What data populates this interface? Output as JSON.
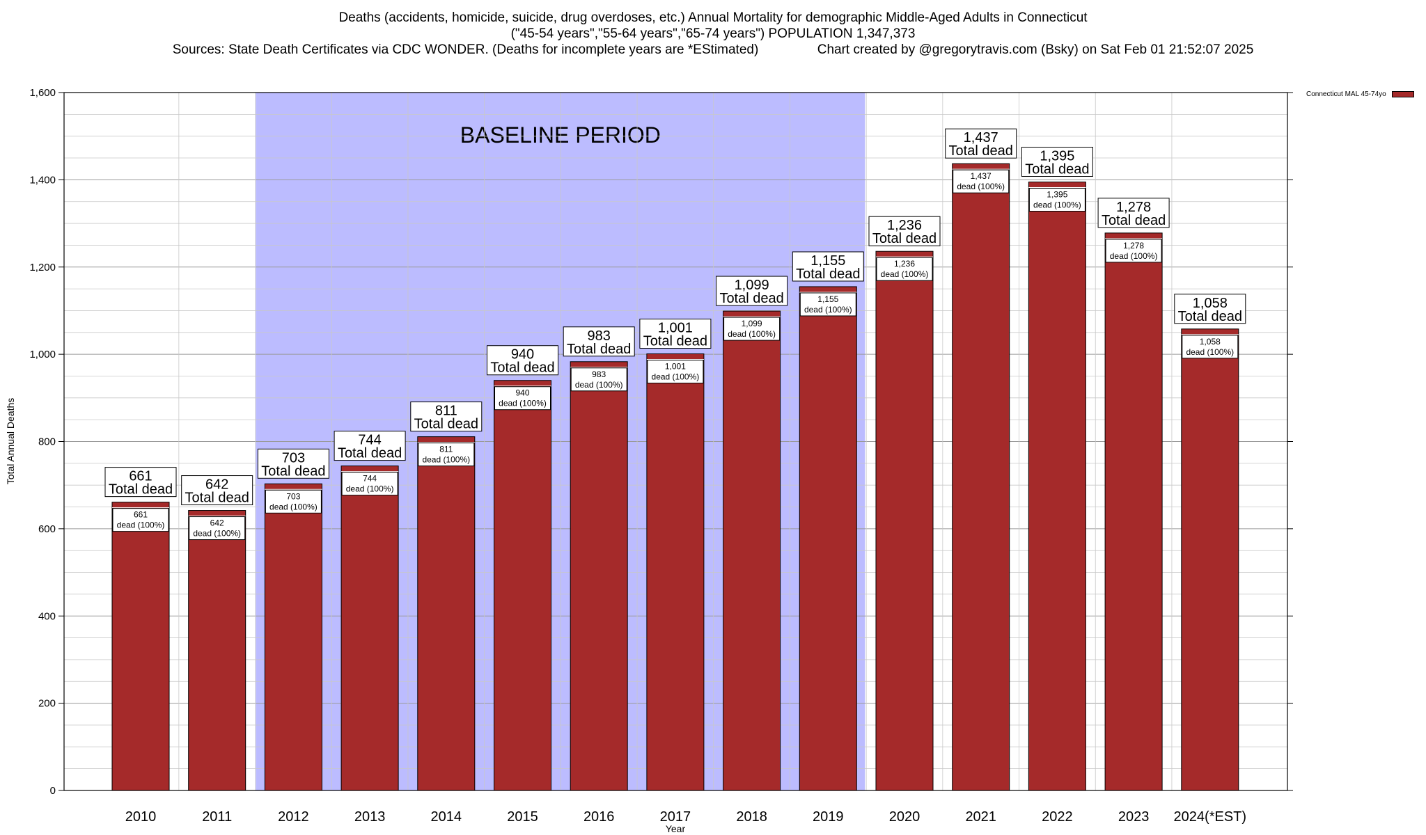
{
  "chart_data": {
    "type": "bar",
    "title": "Deaths (accidents, homicide, suicide, drug overdoses, etc.) Annual Mortality for demographic Middle-Aged Adults in Connecticut",
    "subtitle": "(\"45-54 years\",\"55-64 years\",\"65-74 years\") POPULATION 1,347,373",
    "sources_line": "Sources: State Death Certificates via CDC WONDER. (Deaths for incomplete years are *EStimated)                Chart created by @gregorytravis.com (Bsky) on Sat Feb 01 21:52:07 2025",
    "xlabel": "Year",
    "ylabel": "Total Annual Deaths",
    "ylim": [
      0,
      1600
    ],
    "y_ticks": [
      0,
      200,
      400,
      600,
      800,
      1000,
      1200,
      1400,
      1600
    ],
    "y_tick_labels": [
      "0",
      "200",
      "400",
      "600",
      "800",
      "1,000",
      "1,200",
      "1,400",
      "1,600"
    ],
    "grid": true,
    "legend_position": "top-right",
    "categories": [
      "2010",
      "2011",
      "2012",
      "2013",
      "2014",
      "2015",
      "2016",
      "2017",
      "2018",
      "2019",
      "2020",
      "2021",
      "2022",
      "2023",
      "2024(*EST)"
    ],
    "series": [
      {
        "name": "Connecticut MAL 45-74yo",
        "color": "#a52a2a",
        "values": [
          661,
          642,
          703,
          744,
          811,
          940,
          983,
          1001,
          1099,
          1155,
          1236,
          1437,
          1395,
          1278,
          1058
        ],
        "value_labels": [
          "661",
          "642",
          "703",
          "744",
          "811",
          "940",
          "983",
          "1,001",
          "1,099",
          "1,155",
          "1,236",
          "1,437",
          "1,395",
          "1,278",
          "1,058"
        ]
      }
    ],
    "total_label": "Total dead",
    "inner_label": "dead (100%)",
    "baseline": {
      "label": "BASELINE PERIOD",
      "from": "2012",
      "to": "2019",
      "color": "#bcbcff"
    }
  }
}
